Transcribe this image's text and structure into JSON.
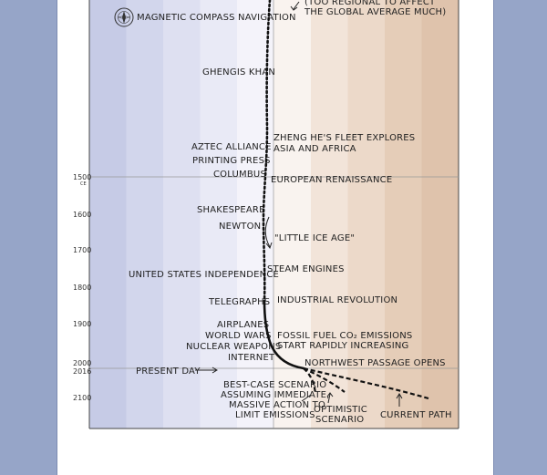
{
  "colors": {
    "page_bg": "#96a5c8",
    "panel_bg": "#ffffff",
    "band_colors": [
      "#c6cbe6",
      "#d2d6ec",
      "#dee0f1",
      "#e9eaf6",
      "#f4f3fa",
      "#f9f3ef",
      "#f2e4d9",
      "#ecd9c9",
      "#e5cdb8",
      "#dfc3ac"
    ]
  },
  "comic": {
    "top_note": {
      "line1": "(TOO REGIONAL TO AFFECT",
      "line2": "THE GLOBAL AVERAGE MUCH)"
    },
    "compass_label": "MAGNETIC COMPASS NAVIGATION",
    "events_left": {
      "genghis": "GHENGIS KHAN",
      "aztec": "AZTEC ALLIANCE",
      "printing": "PRINTING PRESS",
      "columbus": "COLUMBUS",
      "shakespeare": "SHAKESPEARE",
      "newton": "NEWTON",
      "us_independence": "UNITED STATES INDEPENDENCE",
      "telegraphs": "TELEGRAPHS",
      "airplanes": "AIRPLANES",
      "world_wars": "WORLD WARS",
      "nuclear": "NUCLEAR WEAPONS",
      "internet": "INTERNET"
    },
    "events_right": {
      "zheng_he_1": "ZHENG HE'S FLEET EXPLORES",
      "zheng_he_2": "ASIA AND AFRICA",
      "renaissance": "EUROPEAN RENAISSANCE",
      "ice_age": "\"LITTLE ICE AGE\"",
      "steam": "STEAM ENGINES",
      "industrial": "INDUSTRIAL REVOLUTION",
      "fossil_1": "FOSSIL FUEL CO₂ EMISSIONS",
      "fossil_2": "START RAPIDLY INCREASING",
      "northwest": "NORTHWEST PASSAGE OPENS"
    },
    "present_day": "PRESENT DAY",
    "scenarios": {
      "best_case_1": "BEST-CASE SCENARIO",
      "best_case_2": "ASSUMING IMMEDIATE,",
      "best_case_3": "MASSIVE ACTION TO",
      "best_case_4": "LIMIT EMISSIONS",
      "optimistic_1": "OPTIMISTIC",
      "optimistic_2": "SCENARIO",
      "current": "CURRENT PATH"
    },
    "years": {
      "y1500": "1500",
      "y1500_era": "CE",
      "y1600": "1600",
      "y1700": "1700",
      "y1800": "1800",
      "y1900": "1900",
      "y2000": "2000",
      "y2016": "2016",
      "y2100": "2100"
    }
  }
}
